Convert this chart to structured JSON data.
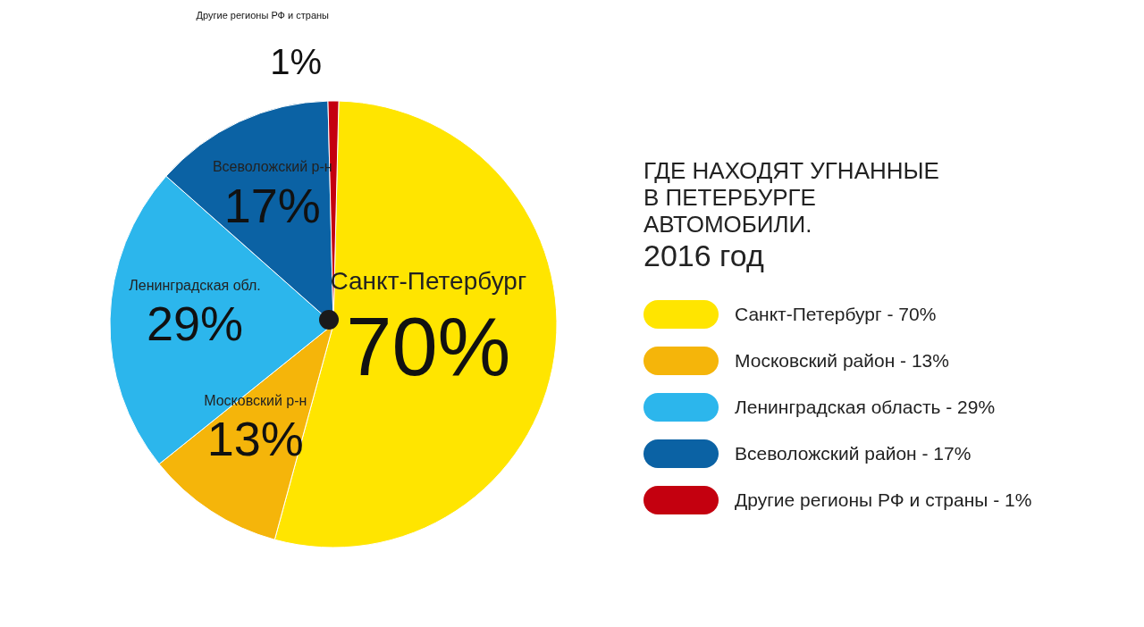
{
  "chart_data": {
    "type": "pie",
    "title": "ГДЕ НАХОДЯТ УГНАННЫЕ В ПЕТЕРБУРГЕ АВТОМОБИЛИ.",
    "subtitle": "2016 год",
    "categories": [
      "Санкт-Петербург - 70%",
      "Московский район - 13%",
      "Ленинградская область - 29%",
      "Всеволожский район - 17%",
      "Другие регионы РФ и страны - 1%"
    ],
    "values": [
      70,
      13,
      29,
      17,
      1
    ],
    "value_labels": [
      "70%",
      "13%",
      "29%",
      "17%",
      "1%"
    ],
    "colors": [
      "#ffe500",
      "#f5b50a",
      "#2cb6ec",
      "#0b62a4",
      "#c4000f"
    ],
    "annotations": [
      "Санкт-Петербург",
      "Московский р-н",
      "Ленинградская обл.",
      "Всеволожский р-н",
      "Другие регионы РФ и страны"
    ],
    "legend": "right"
  }
}
